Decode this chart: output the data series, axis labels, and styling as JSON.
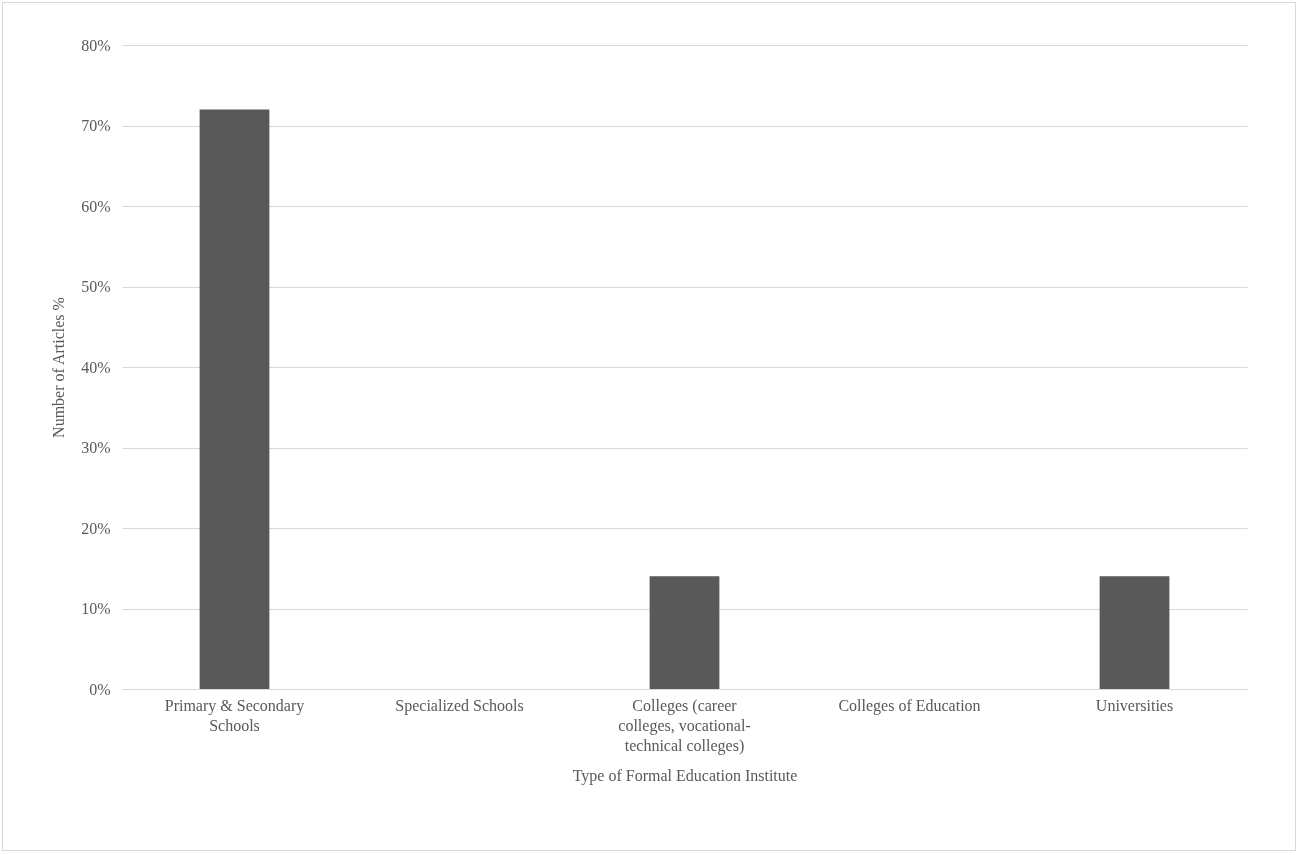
{
  "chart_data": {
    "type": "bar",
    "xlabel": "Type of Formal Education Institute",
    "ylabel": "Number of Articles %",
    "categories": [
      "Primary & Secondary Schools",
      "Specialized Schools",
      "Colleges (career colleges, vocational-technical colleges)",
      "Colleges of Education",
      "Universities"
    ],
    "values": [
      72,
      0,
      14,
      0,
      14
    ],
    "color": "#595959",
    "ylim": [
      0,
      80
    ],
    "yticks": [
      {
        "value": 0,
        "label": "0%"
      },
      {
        "value": 10,
        "label": "10%"
      },
      {
        "value": 20,
        "label": "20%"
      },
      {
        "value": 30,
        "label": "30%"
      },
      {
        "value": 40,
        "label": "40%"
      },
      {
        "value": 50,
        "label": "50%"
      },
      {
        "value": 60,
        "label": "60%"
      },
      {
        "value": 70,
        "label": "70%"
      },
      {
        "value": 80,
        "label": "80%"
      }
    ],
    "grid": "y"
  }
}
